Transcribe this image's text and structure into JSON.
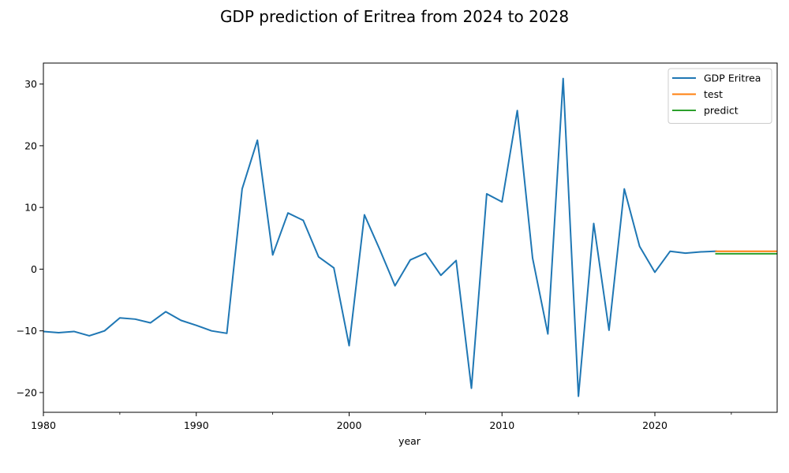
{
  "chart_data": {
    "type": "line",
    "title": "GDP prediction of Eritrea from 2024 to 2028",
    "xlabel": "year",
    "ylabel": "",
    "xlim": [
      1980,
      2028
    ],
    "ylim": [
      -23.2,
      33.4
    ],
    "x_major_ticks": [
      1980,
      1990,
      2000,
      2010,
      2020
    ],
    "x_minor_ticks": [
      1985,
      1995,
      2005,
      2015,
      2025
    ],
    "y_ticks": [
      -20,
      -10,
      0,
      10,
      20,
      30
    ],
    "grid": false,
    "legend_position": "top-right",
    "series": [
      {
        "name": "GDP Eritrea",
        "color": "#1f77b4",
        "x": [
          1980,
          1981,
          1982,
          1983,
          1984,
          1985,
          1986,
          1987,
          1988,
          1989,
          1990,
          1991,
          1992,
          1993,
          1994,
          1995,
          1996,
          1997,
          1998,
          1999,
          2000,
          2001,
          2002,
          2003,
          2004,
          2005,
          2006,
          2007,
          2008,
          2009,
          2010,
          2011,
          2012,
          2013,
          2014,
          2015,
          2016,
          2017,
          2018,
          2019,
          2020,
          2021,
          2022,
          2023,
          2024
        ],
        "y": [
          -10.1,
          -10.3,
          -10.1,
          -10.8,
          -10.0,
          -7.9,
          -8.1,
          -8.7,
          -6.9,
          -8.3,
          -9.1,
          -10.0,
          -10.4,
          13.0,
          20.9,
          2.3,
          9.1,
          7.9,
          2.0,
          0.2,
          -12.4,
          8.8,
          3.2,
          -2.7,
          1.5,
          2.6,
          -1.0,
          1.4,
          -19.3,
          12.2,
          10.9,
          25.7,
          1.8,
          -10.5,
          30.9,
          -20.6,
          7.4,
          -9.9,
          13.0,
          3.7,
          -0.5,
          2.9,
          2.6,
          2.8,
          2.9
        ]
      },
      {
        "name": "test",
        "color": "#ff7f0e",
        "x": [
          2024,
          2025,
          2026,
          2027,
          2028
        ],
        "y": [
          2.9,
          2.9,
          2.9,
          2.9,
          2.9
        ]
      },
      {
        "name": "predict",
        "color": "#2ca02c",
        "x": [
          2024,
          2025,
          2026,
          2027,
          2028
        ],
        "y": [
          2.5,
          2.5,
          2.5,
          2.5,
          2.5
        ]
      }
    ]
  }
}
